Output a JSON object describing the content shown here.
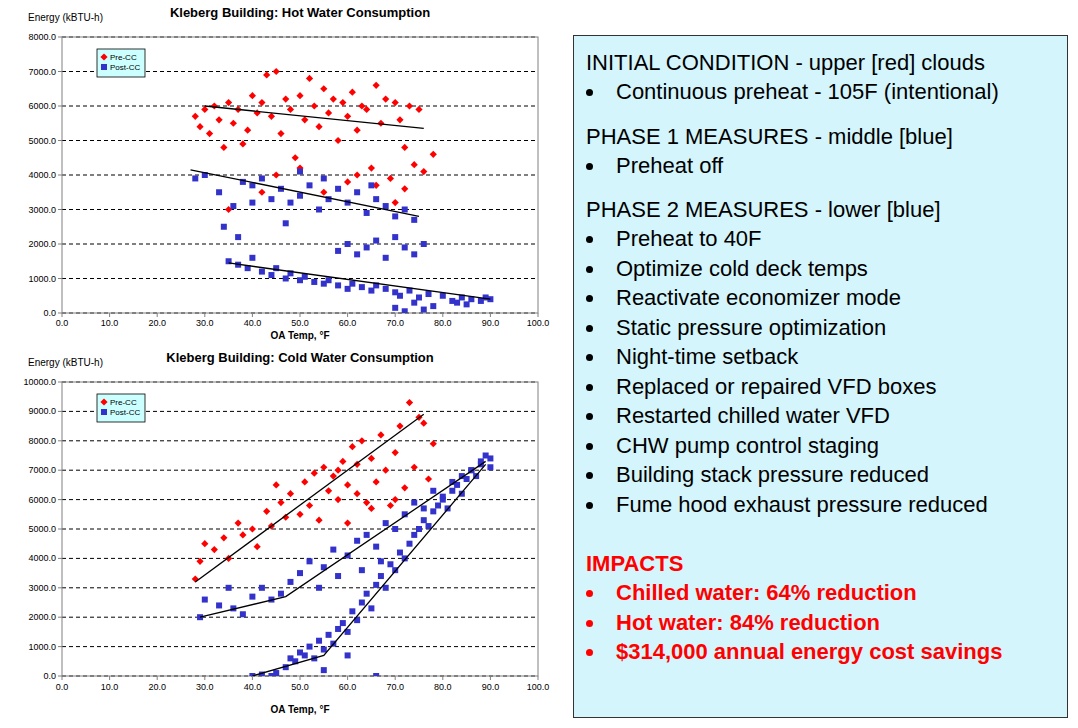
{
  "chart_data": [
    {
      "type": "scatter",
      "title": "Kleberg Building: Hot Water Consumption",
      "xlabel": "OA Temp, °F",
      "ylabel": "Energy (kBTU-h)",
      "xlim": [
        0,
        100
      ],
      "ylim": [
        0,
        8000
      ],
      "xticks": [
        {
          "value": 0,
          "label": "0.0"
        },
        {
          "value": 10,
          "label": "10.0"
        },
        {
          "value": 20,
          "label": "20.0"
        },
        {
          "value": 30,
          "label": "30.0"
        },
        {
          "value": 40,
          "label": "40.0"
        },
        {
          "value": 50,
          "label": "50.0"
        },
        {
          "value": 60,
          "label": "60.0"
        },
        {
          "value": 70,
          "label": "70.0"
        },
        {
          "value": 80,
          "label": "80.0"
        },
        {
          "value": 90,
          "label": "90.0"
        },
        {
          "value": 100,
          "label": "100.0"
        }
      ],
      "yticks": [
        {
          "value": 0,
          "label": "0.0"
        },
        {
          "value": 1000,
          "label": "1000.0"
        },
        {
          "value": 2000,
          "label": "2000.0"
        },
        {
          "value": 3000,
          "label": "3000.0"
        },
        {
          "value": 4000,
          "label": "4000.0"
        },
        {
          "value": 5000,
          "label": "5000.0"
        },
        {
          "value": 6000,
          "label": "6000.0"
        },
        {
          "value": 7000,
          "label": "7000.0"
        },
        {
          "value": 8000,
          "label": "8000.0"
        }
      ],
      "grid": "y",
      "legend": "upper left",
      "series": [
        {
          "name": "Pre-CC",
          "color": "#ff0000",
          "marker": "diamond",
          "x": [
            28,
            29,
            30,
            31,
            32,
            33,
            34,
            35,
            36,
            37,
            38,
            39,
            40,
            41,
            42,
            43,
            44,
            45,
            46,
            47,
            48,
            49,
            50,
            51,
            52,
            53,
            54,
            55,
            56,
            57,
            58,
            59,
            60,
            61,
            62,
            63,
            64,
            65,
            66,
            67,
            68,
            69,
            70,
            71,
            72,
            73,
            74,
            75,
            76,
            78,
            45,
            50,
            55,
            60,
            62,
            66,
            70,
            72,
            35,
            42
          ],
          "values": [
            5700,
            5400,
            5900,
            5200,
            6000,
            5600,
            4800,
            6100,
            5500,
            5900,
            4900,
            5300,
            6300,
            5800,
            6100,
            6900,
            5700,
            7000,
            5200,
            6200,
            5900,
            4500,
            6300,
            5600,
            6800,
            6000,
            5400,
            6500,
            5800,
            6200,
            5000,
            6100,
            5700,
            6400,
            5300,
            6000,
            5900,
            4200,
            6600,
            5500,
            6200,
            3900,
            6100,
            5600,
            4800,
            6000,
            4300,
            5900,
            4100,
            4600,
            4000,
            4200,
            3500,
            3800,
            4000,
            3700,
            3200,
            3600,
            3000,
            3500
          ]
        },
        {
          "name": "Post-CC",
          "color": "#3333cc",
          "marker": "square",
          "x": [
            28,
            30,
            33,
            36,
            38,
            40,
            42,
            44,
            46,
            48,
            50,
            52,
            54,
            56,
            58,
            60,
            62,
            64,
            66,
            68,
            70,
            72,
            74,
            40,
            50,
            55,
            65,
            34,
            37,
            47,
            58,
            60,
            62,
            64,
            66,
            68,
            70,
            72,
            74,
            76,
            35,
            37,
            39,
            40,
            42,
            44,
            45,
            47,
            48,
            50,
            51,
            53,
            55,
            56,
            58,
            60,
            61,
            63,
            65,
            66,
            68,
            70,
            71,
            73,
            74,
            75,
            77,
            78,
            80,
            82,
            84,
            85,
            86,
            88,
            89,
            90,
            76,
            72,
            70,
            83
          ],
          "values": [
            3900,
            4000,
            3500,
            3100,
            3800,
            3700,
            3900,
            3300,
            3600,
            3200,
            3400,
            3700,
            3000,
            3300,
            3600,
            3200,
            3500,
            2900,
            3300,
            3100,
            2800,
            3000,
            2700,
            3200,
            4100,
            3900,
            3700,
            2500,
            2200,
            2600,
            1800,
            2000,
            1700,
            1900,
            2100,
            1600,
            2200,
            1900,
            1700,
            2000,
            1500,
            1400,
            1300,
            1600,
            1200,
            1100,
            1300,
            1000,
            1150,
            950,
            1050,
            900,
            850,
            950,
            800,
            700,
            850,
            750,
            650,
            800,
            700,
            600,
            500,
            650,
            300,
            450,
            550,
            200,
            500,
            350,
            450,
            250,
            400,
            350,
            450,
            400,
            100,
            50,
            150,
            300
          ]
        },
        {
          "type": "line",
          "color": "#000000",
          "x": [
            30,
            76
          ],
          "values": [
            6000,
            5350
          ]
        },
        {
          "type": "line",
          "color": "#000000",
          "x": [
            27,
            75
          ],
          "values": [
            4150,
            2800
          ]
        },
        {
          "type": "line",
          "color": "#000000",
          "x": [
            35,
            90
          ],
          "values": [
            1450,
            400
          ]
        }
      ]
    },
    {
      "type": "scatter",
      "title": "Kleberg Building: Cold Water Consumption",
      "xlabel": "OA Temp, °F",
      "ylabel": "Energy (kBTU-h)",
      "xlim": [
        0,
        100
      ],
      "ylim": [
        0,
        10000
      ],
      "xticks": [
        {
          "value": 0,
          "label": "0.0"
        },
        {
          "value": 10,
          "label": "10.0"
        },
        {
          "value": 20,
          "label": "20.0"
        },
        {
          "value": 30,
          "label": "30.0"
        },
        {
          "value": 40,
          "label": "40.0"
        },
        {
          "value": 50,
          "label": "50.0"
        },
        {
          "value": 60,
          "label": "60.0"
        },
        {
          "value": 70,
          "label": "70.0"
        },
        {
          "value": 80,
          "label": "80.0"
        },
        {
          "value": 90,
          "label": "90.0"
        },
        {
          "value": 100,
          "label": "100.0"
        }
      ],
      "yticks": [
        {
          "value": 0,
          "label": "0.0"
        },
        {
          "value": 1000,
          "label": "1000.0"
        },
        {
          "value": 2000,
          "label": "2000.0"
        },
        {
          "value": 3000,
          "label": "3000.0"
        },
        {
          "value": 4000,
          "label": "4000.0"
        },
        {
          "value": 5000,
          "label": "5000.0"
        },
        {
          "value": 6000,
          "label": "6000.0"
        },
        {
          "value": 7000,
          "label": "7000.0"
        },
        {
          "value": 8000,
          "label": "8000.0"
        },
        {
          "value": 9000,
          "label": "9000.0"
        },
        {
          "value": 10000,
          "label": "10000.0"
        }
      ],
      "grid": "y",
      "legend": "upper left",
      "series": [
        {
          "name": "Pre-CC",
          "color": "#ff0000",
          "marker": "diamond",
          "x": [
            28,
            29,
            30,
            32,
            34,
            35,
            37,
            38,
            40,
            41,
            43,
            44,
            46,
            47,
            48,
            50,
            51,
            52,
            53,
            54,
            55,
            56,
            57,
            58,
            59,
            60,
            61,
            62,
            63,
            64,
            65,
            66,
            67,
            68,
            69,
            70,
            71,
            72,
            73,
            74,
            75,
            76,
            77,
            78,
            60,
            65,
            70,
            58,
            62,
            45
          ],
          "values": [
            3300,
            3900,
            4500,
            4300,
            4700,
            4000,
            5200,
            4800,
            5000,
            4400,
            5600,
            5100,
            5900,
            5400,
            6200,
            5500,
            6600,
            5800,
            6900,
            5300,
            7100,
            6300,
            6800,
            6000,
            7300,
            6500,
            7800,
            6200,
            8000,
            5900,
            7400,
            6600,
            8200,
            7000,
            5800,
            7600,
            8500,
            6400,
            9300,
            7100,
            8800,
            8600,
            6700,
            7900,
            5200,
            5700,
            6000,
            7000,
            7200,
            6500
          ]
        },
        {
          "name": "Post-CC",
          "color": "#3333cc",
          "marker": "square",
          "x": [
            29,
            30,
            33,
            36,
            38,
            40,
            42,
            44,
            46,
            48,
            50,
            52,
            55,
            57,
            60,
            62,
            64,
            66,
            68,
            70,
            72,
            74,
            76,
            78,
            80,
            82,
            84,
            86,
            88,
            90,
            54,
            58,
            63,
            67,
            35,
            40,
            42,
            44,
            45,
            47,
            48,
            49,
            50,
            51,
            52,
            53,
            54,
            55,
            56,
            57,
            58,
            59,
            60,
            61,
            62,
            63,
            64,
            65,
            66,
            67,
            68,
            69,
            70,
            71,
            72,
            73,
            74,
            75,
            76,
            77,
            78,
            79,
            80,
            81,
            82,
            83,
            84,
            85,
            86,
            87,
            88,
            89,
            90,
            66,
            55,
            60
          ],
          "values": [
            2000,
            2600,
            2400,
            2300,
            2100,
            2700,
            3000,
            2600,
            2800,
            3200,
            3500,
            3900,
            3700,
            4300,
            4100,
            4600,
            4800,
            4400,
            5200,
            5000,
            5500,
            5900,
            5700,
            6300,
            6100,
            6600,
            6800,
            7000,
            7300,
            7100,
            3000,
            3400,
            3600,
            3900,
            3000,
            0,
            50,
            0,
            100,
            300,
            600,
            500,
            800,
            700,
            1000,
            600,
            1200,
            900,
            1400,
            1100,
            1600,
            1800,
            1500,
            2200,
            1900,
            2500,
            2800,
            2300,
            3100,
            3400,
            3000,
            3800,
            3600,
            4200,
            4000,
            4500,
            4800,
            5000,
            5300,
            5100,
            5600,
            5800,
            6000,
            5700,
            6300,
            6500,
            6200,
            6700,
            7000,
            6800,
            7200,
            7500,
            7400,
            0,
            200,
            700
          ]
        },
        {
          "type": "line",
          "color": "#000000",
          "x": [
            28,
            76
          ],
          "values": [
            3200,
            8900
          ]
        },
        {
          "type": "line",
          "color": "#000000",
          "x": [
            29,
            47,
            89
          ],
          "values": [
            2000,
            2700,
            7300
          ]
        },
        {
          "type": "line",
          "color": "#000000",
          "x": [
            40,
            55,
            89
          ],
          "values": [
            0,
            700,
            7200
          ]
        }
      ]
    }
  ],
  "panel": {
    "sections": [
      {
        "heading": "INITIAL CONDITION - upper [red] clouds",
        "items": [
          "Continuous preheat - 105F (intentional)"
        ]
      },
      {
        "heading": "PHASE 1 MEASURES - middle [blue]",
        "items": [
          "Preheat off"
        ]
      },
      {
        "heading": "PHASE 2 MEASURES - lower [blue]",
        "items": [
          "Preheat to 40F",
          "Optimize cold deck temps",
          "Reactivate economizer mode",
          "Static pressure optimization",
          "Night-time setback",
          "Replaced or repaired VFD boxes",
          "Restarted chilled water VFD",
          "CHW pump control staging",
          "Building stack pressure reduced",
          "Fume hood exhaust pressure reduced"
        ]
      },
      {
        "heading": "IMPACTS",
        "color": "#ff0000",
        "items": [
          "Chilled water: 64% reduction",
          "Hot water: 84% reduction",
          "$314,000 annual energy cost savings"
        ]
      }
    ]
  }
}
